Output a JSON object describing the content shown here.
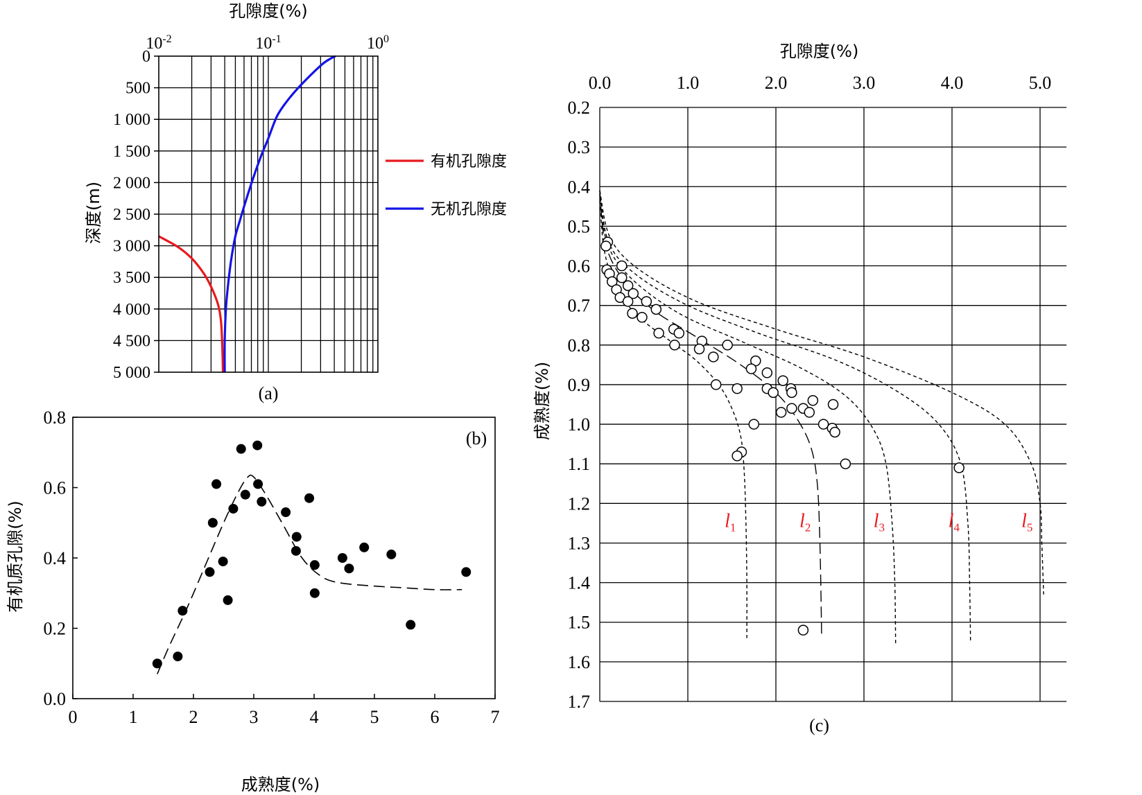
{
  "figure": {
    "panel_a_label": "(a)",
    "panel_b_label": "(b)",
    "panel_c_label": "(c)"
  },
  "colors": {
    "organic": "#e8191e",
    "inorganic": "#1414e6",
    "axis": "#000000"
  },
  "chart_data": [
    {
      "id": "a",
      "type": "line",
      "title": "孔隙度(%)",
      "xlabel": "孔隙度(%)",
      "ylabel": "深度(m)",
      "xscale": "log",
      "xlim": [
        0.01,
        1
      ],
      "x_tick_labels": [
        {
          "base": "10",
          "exp": "-2"
        },
        {
          "base": "10",
          "exp": "-1"
        },
        {
          "base": "10",
          "exp": "0"
        }
      ],
      "ylim": [
        0,
        5000
      ],
      "y_inverted": true,
      "y_ticks": [
        0,
        500,
        1000,
        1500,
        2000,
        2500,
        3000,
        3500,
        4000,
        4500,
        5000
      ],
      "y_tick_labels": [
        "0",
        "500",
        "1 000",
        "1 500",
        "2 000",
        "2 500",
        "3 000",
        "3 500",
        "4 000",
        "4 500",
        "5 000"
      ],
      "grid": true,
      "legend_position": "right",
      "series": [
        {
          "name": "有机孔隙度",
          "color": "#e8191e",
          "points": [
            [
              0.01,
              2850
            ],
            [
              0.015,
              3020
            ],
            [
              0.02,
              3200
            ],
            [
              0.026,
              3450
            ],
            [
              0.031,
              3700
            ],
            [
              0.035,
              3950
            ],
            [
              0.037,
              4200
            ],
            [
              0.038,
              4600
            ],
            [
              0.0385,
              5000
            ]
          ]
        },
        {
          "name": "无机孔隙度",
          "color": "#1414e6",
          "points": [
            [
              0.41,
              0
            ],
            [
              0.36,
              50
            ],
            [
              0.3,
              150
            ],
            [
              0.2,
              450
            ],
            [
              0.15,
              700
            ],
            [
              0.12,
              950
            ],
            [
              0.1,
              1300
            ],
            [
              0.085,
              1600
            ],
            [
              0.072,
              1950
            ],
            [
              0.062,
              2300
            ],
            [
              0.055,
              2600
            ],
            [
              0.05,
              2850
            ],
            [
              0.046,
              3200
            ],
            [
              0.043,
              3600
            ],
            [
              0.041,
              4000
            ],
            [
              0.04,
              4500
            ],
            [
              0.04,
              5000
            ]
          ]
        }
      ]
    },
    {
      "id": "b",
      "type": "scatter",
      "xlabel": "成熟度(%)",
      "ylabel": "有机质孔隙(%)",
      "xlim": [
        0,
        7
      ],
      "ylim": [
        0,
        0.8
      ],
      "x_ticks": [
        0,
        1,
        2,
        3,
        4,
        5,
        6,
        7
      ],
      "x_tick_labels": [
        "0",
        "1",
        "2",
        "3",
        "4",
        "5",
        "6",
        "7"
      ],
      "y_ticks": [
        0,
        0.2,
        0.4,
        0.6,
        0.8
      ],
      "y_tick_labels": [
        "0.0",
        "0.2",
        "0.4",
        "0.6",
        "0.8"
      ],
      "grid": false,
      "points": [
        [
          1.4,
          0.1
        ],
        [
          1.74,
          0.12
        ],
        [
          1.82,
          0.25
        ],
        [
          2.27,
          0.36
        ],
        [
          2.32,
          0.5
        ],
        [
          2.38,
          0.61
        ],
        [
          2.49,
          0.39
        ],
        [
          2.57,
          0.28
        ],
        [
          2.66,
          0.54
        ],
        [
          2.79,
          0.71
        ],
        [
          2.86,
          0.58
        ],
        [
          3.06,
          0.72
        ],
        [
          3.07,
          0.61
        ],
        [
          3.13,
          0.56
        ],
        [
          3.53,
          0.53
        ],
        [
          3.7,
          0.42
        ],
        [
          3.71,
          0.46
        ],
        [
          3.92,
          0.57
        ],
        [
          4.01,
          0.38
        ],
        [
          4.01,
          0.3
        ],
        [
          4.47,
          0.4
        ],
        [
          4.58,
          0.37
        ],
        [
          4.83,
          0.43
        ],
        [
          5.28,
          0.41
        ],
        [
          5.6,
          0.21
        ],
        [
          6.52,
          0.36
        ]
      ],
      "trend": [
        [
          1.4,
          0.07
        ],
        [
          1.6,
          0.15
        ],
        [
          1.9,
          0.26
        ],
        [
          2.2,
          0.38
        ],
        [
          2.5,
          0.5
        ],
        [
          2.75,
          0.59
        ],
        [
          2.9,
          0.63
        ],
        [
          3.0,
          0.63
        ],
        [
          3.2,
          0.58
        ],
        [
          3.5,
          0.49
        ],
        [
          3.8,
          0.4
        ],
        [
          4.1,
          0.35
        ],
        [
          4.4,
          0.33
        ],
        [
          5.0,
          0.32
        ],
        [
          5.5,
          0.315
        ],
        [
          6.0,
          0.31
        ],
        [
          6.45,
          0.31
        ]
      ]
    },
    {
      "id": "c",
      "type": "scatter",
      "title": "孔隙度(%)",
      "xlabel": "孔隙度(%)",
      "ylabel": "成熟度(%)",
      "xlim": [
        0,
        5.3
      ],
      "ylim": [
        0.2,
        1.7
      ],
      "y_inverted": true,
      "x_ticks": [
        0,
        1,
        2,
        3,
        4,
        5
      ],
      "x_tick_labels": [
        "0.0",
        "1.0",
        "2.0",
        "3.0",
        "4.0",
        "5.0"
      ],
      "y_ticks": [
        0.2,
        0.3,
        0.4,
        0.5,
        0.6,
        0.7,
        0.8,
        0.9,
        1.0,
        1.1,
        1.2,
        1.3,
        1.4,
        1.5,
        1.6,
        1.7
      ],
      "y_tick_labels": [
        "0.2",
        "0.3",
        "0.4",
        "0.5",
        "0.6",
        "0.7",
        "0.8",
        "0.9",
        "1.0",
        "1.1",
        "1.2",
        "1.3",
        "1.4",
        "1.5",
        "1.6",
        "1.7"
      ],
      "grid": true,
      "points": [
        [
          0.09,
          0.54
        ],
        [
          0.07,
          0.55
        ],
        [
          0.08,
          0.61
        ],
        [
          0.25,
          0.6
        ],
        [
          0.11,
          0.62
        ],
        [
          0.14,
          0.64
        ],
        [
          0.25,
          0.63
        ],
        [
          0.32,
          0.65
        ],
        [
          0.19,
          0.66
        ],
        [
          0.38,
          0.67
        ],
        [
          0.23,
          0.68
        ],
        [
          0.32,
          0.69
        ],
        [
          0.53,
          0.69
        ],
        [
          0.64,
          0.71
        ],
        [
          0.37,
          0.72
        ],
        [
          0.48,
          0.73
        ],
        [
          0.84,
          0.76
        ],
        [
          0.67,
          0.77
        ],
        [
          0.9,
          0.77
        ],
        [
          0.85,
          0.8
        ],
        [
          1.16,
          0.79
        ],
        [
          1.45,
          0.8
        ],
        [
          1.13,
          0.81
        ],
        [
          1.29,
          0.83
        ],
        [
          1.77,
          0.84
        ],
        [
          1.72,
          0.86
        ],
        [
          1.9,
          0.87
        ],
        [
          2.08,
          0.89
        ],
        [
          1.32,
          0.9
        ],
        [
          1.56,
          0.91
        ],
        [
          1.9,
          0.91
        ],
        [
          1.97,
          0.92
        ],
        [
          2.17,
          0.91
        ],
        [
          2.18,
          0.92
        ],
        [
          2.42,
          0.94
        ],
        [
          2.65,
          0.95
        ],
        [
          2.18,
          0.96
        ],
        [
          2.31,
          0.96
        ],
        [
          2.38,
          0.97
        ],
        [
          2.06,
          0.97
        ],
        [
          2.54,
          1.0
        ],
        [
          1.75,
          1.0
        ],
        [
          2.64,
          1.01
        ],
        [
          2.67,
          1.02
        ],
        [
          1.61,
          1.07
        ],
        [
          1.56,
          1.08
        ],
        [
          2.79,
          1.1
        ],
        [
          4.08,
          1.11
        ],
        [
          2.31,
          1.52
        ]
      ],
      "curves": [
        {
          "name": "l",
          "sub": "1",
          "dash": "5,4",
          "points": [
            [
              0.0,
              0.42
            ],
            [
              0.05,
              0.56
            ],
            [
              0.2,
              0.66
            ],
            [
              0.45,
              0.73
            ],
            [
              0.8,
              0.79
            ],
            [
              1.1,
              0.84
            ],
            [
              1.35,
              0.9
            ],
            [
              1.5,
              0.96
            ],
            [
              1.6,
              1.03
            ],
            [
              1.64,
              1.12
            ],
            [
              1.66,
              1.25
            ],
            [
              1.67,
              1.4
            ],
            [
              1.67,
              1.54
            ]
          ]
        },
        {
          "name": "l",
          "sub": "2",
          "dash": "16,7",
          "points": [
            [
              0.0,
              0.41
            ],
            [
              0.06,
              0.54
            ],
            [
              0.25,
              0.63
            ],
            [
              0.6,
              0.71
            ],
            [
              1.1,
              0.78
            ],
            [
              1.6,
              0.85
            ],
            [
              2.0,
              0.92
            ],
            [
              2.25,
              0.99
            ],
            [
              2.4,
              1.06
            ],
            [
              2.47,
              1.15
            ],
            [
              2.5,
              1.3
            ],
            [
              2.52,
              1.54
            ]
          ]
        },
        {
          "name": "l",
          "sub": "3",
          "dash": "5,4",
          "points": [
            [
              0.0,
              0.41
            ],
            [
              0.08,
              0.54
            ],
            [
              0.35,
              0.63
            ],
            [
              0.9,
              0.72
            ],
            [
              1.6,
              0.79
            ],
            [
              2.3,
              0.86
            ],
            [
              2.8,
              0.93
            ],
            [
              3.1,
              1.01
            ],
            [
              3.25,
              1.1
            ],
            [
              3.32,
              1.25
            ],
            [
              3.35,
              1.4
            ],
            [
              3.36,
              1.56
            ]
          ]
        },
        {
          "name": "l",
          "sub": "4",
          "dash": "5,4",
          "points": [
            [
              0.0,
              0.41
            ],
            [
              0.1,
              0.54
            ],
            [
              0.4,
              0.62
            ],
            [
              1.0,
              0.7
            ],
            [
              1.8,
              0.77
            ],
            [
              2.7,
              0.84
            ],
            [
              3.4,
              0.92
            ],
            [
              3.85,
              1.0
            ],
            [
              4.1,
              1.1
            ],
            [
              4.18,
              1.25
            ],
            [
              4.2,
              1.4
            ],
            [
              4.21,
              1.55
            ]
          ]
        },
        {
          "name": "l",
          "sub": "5",
          "dash": "5,4",
          "points": [
            [
              0.0,
              0.41
            ],
            [
              0.12,
              0.53
            ],
            [
              0.45,
              0.61
            ],
            [
              1.1,
              0.69
            ],
            [
              2.0,
              0.76
            ],
            [
              3.0,
              0.83
            ],
            [
              4.0,
              0.92
            ],
            [
              4.6,
              1.0
            ],
            [
              4.9,
              1.1
            ],
            [
              5.0,
              1.2
            ],
            [
              5.02,
              1.3
            ],
            [
              5.04,
              1.43
            ]
          ]
        }
      ]
    }
  ]
}
